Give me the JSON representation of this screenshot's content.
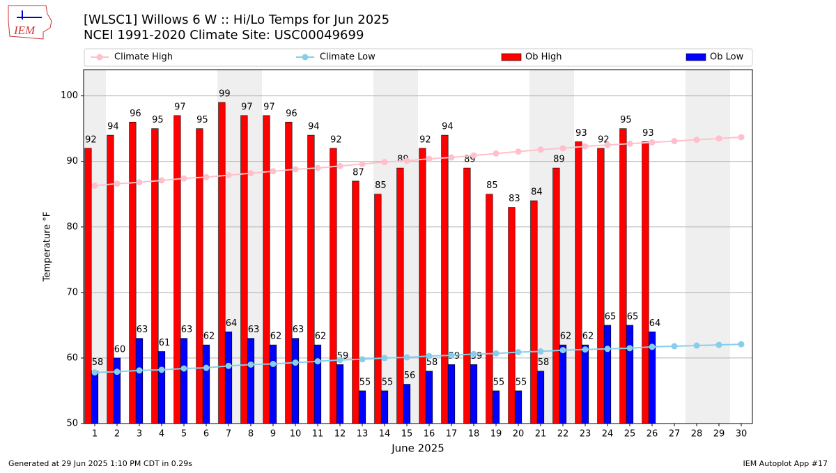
{
  "chart_data": {
    "type": "bar",
    "logo_text": "IEM",
    "title": "[WLSC1] Willows 6 W :: Hi/Lo Temps for Jun 2025",
    "subtitle": "NCEI 1991-2020 Climate Site: USC00049699",
    "xlabel": "June 2025",
    "ylabel": "Temperature °F",
    "footer_left": "Generated at 29 Jun 2025 1:10 PM CDT in 0.29s",
    "footer_right": "IEM Autoplot App #17",
    "x": [
      1,
      2,
      3,
      4,
      5,
      6,
      7,
      8,
      9,
      10,
      11,
      12,
      13,
      14,
      15,
      16,
      17,
      18,
      19,
      20,
      21,
      22,
      23,
      24,
      25,
      26,
      27,
      28,
      29,
      30
    ],
    "xlim": [
      0.5,
      30.5
    ],
    "xticks": [
      1,
      2,
      3,
      4,
      5,
      6,
      7,
      8,
      9,
      10,
      11,
      12,
      13,
      14,
      15,
      16,
      17,
      18,
      19,
      20,
      21,
      22,
      23,
      24,
      25,
      26,
      27,
      28,
      29,
      30
    ],
    "ylim": [
      50,
      104
    ],
    "yticks": [
      50,
      60,
      70,
      80,
      90,
      100
    ],
    "grid": true,
    "shaded_days": [
      1,
      7,
      8,
      14,
      15,
      21,
      22,
      28,
      29
    ],
    "series": [
      {
        "name": "Climate High",
        "kind": "line",
        "color": "#ffc0cb",
        "values": [
          86.3,
          86.6,
          86.8,
          87.1,
          87.4,
          87.6,
          87.9,
          88.2,
          88.5,
          88.8,
          89.0,
          89.3,
          89.6,
          89.9,
          90.1,
          90.4,
          90.6,
          90.9,
          91.2,
          91.5,
          91.8,
          92.0,
          92.3,
          92.5,
          92.7,
          92.9,
          93.1,
          93.3,
          93.5,
          93.7
        ]
      },
      {
        "name": "Climate Low",
        "kind": "line",
        "color": "#87ceeb",
        "values": [
          57.8,
          57.9,
          58.1,
          58.2,
          58.4,
          58.5,
          58.8,
          59.0,
          59.1,
          59.3,
          59.5,
          59.7,
          59.8,
          60.0,
          60.1,
          60.3,
          60.4,
          60.6,
          60.7,
          60.9,
          61.0,
          61.2,
          61.3,
          61.4,
          61.5,
          61.7,
          61.8,
          61.9,
          62.0,
          62.1
        ]
      },
      {
        "name": "Ob High",
        "kind": "bar",
        "color": "#ff0000",
        "values": [
          92,
          94,
          96,
          95,
          97,
          95,
          99,
          97,
          97,
          96,
          94,
          92,
          87,
          85,
          89,
          92,
          94,
          89,
          85,
          83,
          84,
          89,
          93,
          92,
          95,
          93,
          null,
          null,
          null,
          null
        ]
      },
      {
        "name": "Ob Low",
        "kind": "bar",
        "color": "#0000ff",
        "values": [
          58,
          60,
          63,
          61,
          63,
          62,
          64,
          63,
          62,
          63,
          62,
          59,
          55,
          55,
          56,
          58,
          59,
          59,
          55,
          55,
          58,
          62,
          62,
          65,
          65,
          64,
          null,
          null,
          null,
          null
        ]
      }
    ]
  }
}
